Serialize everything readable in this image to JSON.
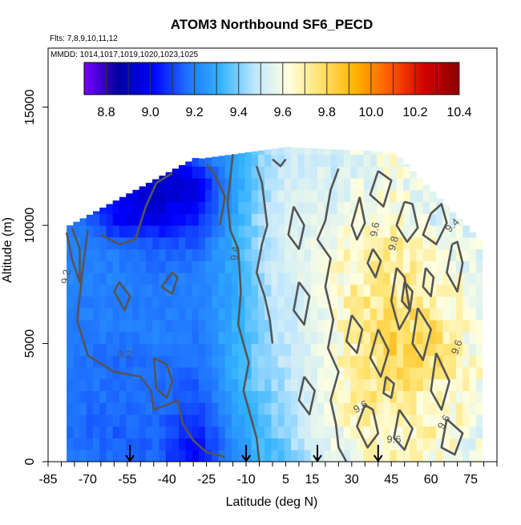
{
  "chart_data": {
    "type": "heatmap",
    "title": "ATOM3 Northbound SF6_PECD",
    "flights_note": "Flts: 7,8,9,10,11,12",
    "dates_note": "MMDD: 1014,1017,1019,1020,1023,1025",
    "xlabel": "Latitude (deg N)",
    "ylabel": "Altitude (m)",
    "xlim": [
      -85,
      85
    ],
    "ylim": [
      0,
      17500
    ],
    "x_ticks": [
      -85,
      -70,
      -55,
      -40,
      -25,
      -10,
      5,
      15,
      30,
      45,
      60,
      75
    ],
    "y_ticks": [
      0,
      5000,
      10000,
      15000
    ],
    "colorbar": {
      "range": [
        8.7,
        10.4
      ],
      "ticks": [
        8.8,
        9.0,
        9.2,
        9.4,
        9.6,
        9.8,
        10.0,
        10.2,
        10.4
      ],
      "colors": [
        "#7b00ff",
        "#0000a0",
        "#0000ff",
        "#1e6fff",
        "#33b3ff",
        "#bfe6ff",
        "#ffffe0",
        "#ffe066",
        "#ffb000",
        "#ff5500",
        "#d00000",
        "#8b0000"
      ]
    },
    "contour_labels": [
      "9.2",
      "9.2",
      "9.4",
      "9.6",
      "9.6",
      "9.6",
      "9.6",
      "9.4",
      "9.8",
      "9.6"
    ],
    "flight_markers_lat": [
      -54,
      -10,
      17,
      40
    ],
    "series": [
      {
        "lat": -75,
        "values": [
          9.18,
          9.16,
          9.17,
          9.18,
          9.19,
          9.2,
          9.21,
          9.2
        ]
      },
      {
        "lat": -60,
        "values": [
          9.15,
          9.14,
          9.17,
          9.16,
          9.18,
          9.2,
          9.2,
          9.18,
          9.0
        ]
      },
      {
        "lat": -45,
        "values": [
          9.15,
          9.15,
          9.18,
          9.17,
          9.2,
          9.2,
          9.18,
          9.15,
          8.98,
          8.9
        ]
      },
      {
        "lat": -30,
        "values": [
          9.0,
          9.05,
          9.12,
          9.16,
          9.18,
          9.2,
          9.2,
          9.15,
          9.05,
          8.95,
          9.1
        ]
      },
      {
        "lat": -15,
        "values": [
          9.25,
          9.25,
          9.3,
          9.3,
          9.32,
          9.3,
          9.3,
          9.32,
          9.3,
          9.28,
          9.3
        ]
      },
      {
        "lat": 0,
        "values": [
          9.35,
          9.38,
          9.42,
          9.45,
          9.46,
          9.48,
          9.5,
          9.5,
          9.52,
          9.5,
          9.48,
          9.5
        ]
      },
      {
        "lat": 15,
        "values": [
          9.5,
          9.55,
          9.55,
          9.56,
          9.56,
          9.55,
          9.58,
          9.58,
          9.56,
          9.55,
          9.52
        ]
      },
      {
        "lat": 30,
        "values": [
          9.62,
          9.66,
          9.7,
          9.7,
          9.7,
          9.72,
          9.68,
          9.65,
          9.62,
          9.55
        ]
      },
      {
        "lat": 45,
        "values": [
          9.66,
          9.7,
          9.74,
          9.8,
          9.82,
          9.76,
          9.72,
          9.7,
          9.65,
          9.62
        ]
      },
      {
        "lat": 60,
        "values": [
          9.65,
          9.68,
          9.7,
          9.75,
          9.78,
          9.72,
          9.7,
          9.62,
          9.55
        ]
      },
      {
        "lat": 75,
        "values": [
          9.58,
          9.6,
          9.62,
          9.64,
          9.6,
          9.6,
          9.58,
          9.55
        ]
      }
    ]
  }
}
